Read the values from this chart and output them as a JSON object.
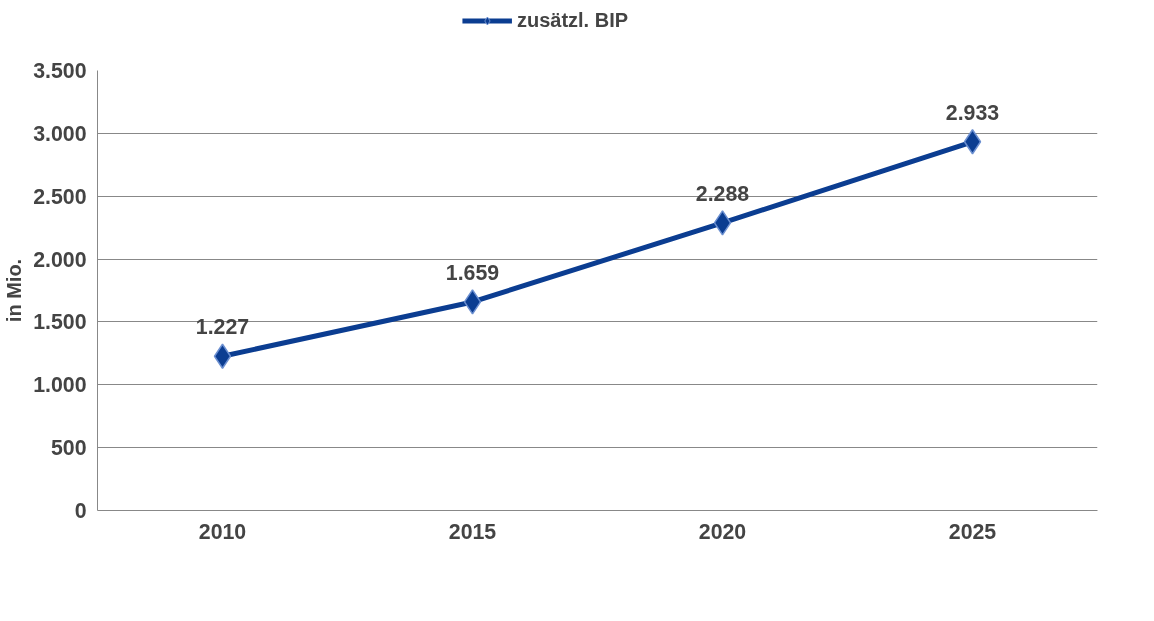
{
  "chart_data": {
    "type": "line",
    "ylabel": "in Mio.",
    "categories": [
      "2010",
      "2015",
      "2020",
      "2025"
    ],
    "series": [
      {
        "name": "zusätzl. BIP",
        "color": "#0b3d91",
        "values": [
          1227,
          1659,
          2288,
          2933
        ],
        "value_labels": [
          "1.227",
          "1.659",
          "2.288",
          "2.933"
        ]
      }
    ],
    "ylim": [
      0,
      3500
    ],
    "yticks": [
      0,
      500,
      {
        "value": 1000,
        "label": "1.000"
      },
      {
        "value": 1500,
        "label": "1.500"
      },
      {
        "value": 2000,
        "label": "2.000"
      },
      {
        "value": 2500,
        "label": "2.500"
      },
      {
        "value": 3000,
        "label": "3.000"
      },
      {
        "value": 3500,
        "label": "3.500"
      }
    ],
    "grid": "y",
    "legend": "top",
    "marker": "diamond",
    "line_style": "solid"
  }
}
